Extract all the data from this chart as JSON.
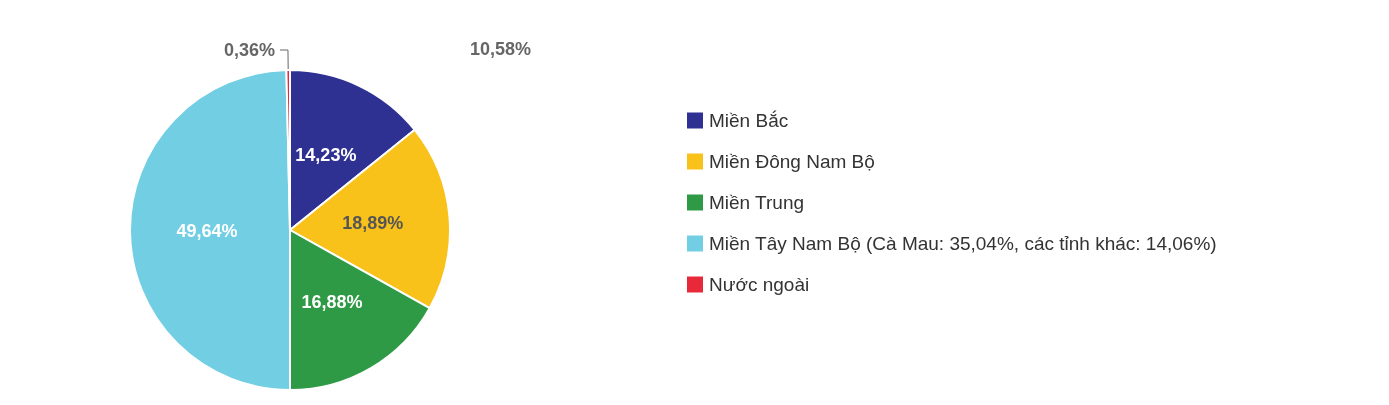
{
  "chart_data": {
    "type": "pie",
    "categories": [
      "Miền Bắc",
      "Miền Đông Nam Bộ",
      "Miền Trung",
      "Miền Tây Nam Bộ (Cà Mau: 35,04%, các tỉnh khác: 14,06%)",
      "Nước ngoài"
    ],
    "values": [
      14.23,
      18.89,
      16.88,
      49.64,
      0.36
    ],
    "value_labels": [
      "14,23%",
      "18,89%",
      "16,88%",
      "49,64%",
      "0,36%"
    ],
    "colors": [
      "#2e3192",
      "#f9c21b",
      "#2f9a45",
      "#72cee3",
      "#e8293a"
    ],
    "legend": "right",
    "annotations": [
      "10,58%"
    ]
  }
}
